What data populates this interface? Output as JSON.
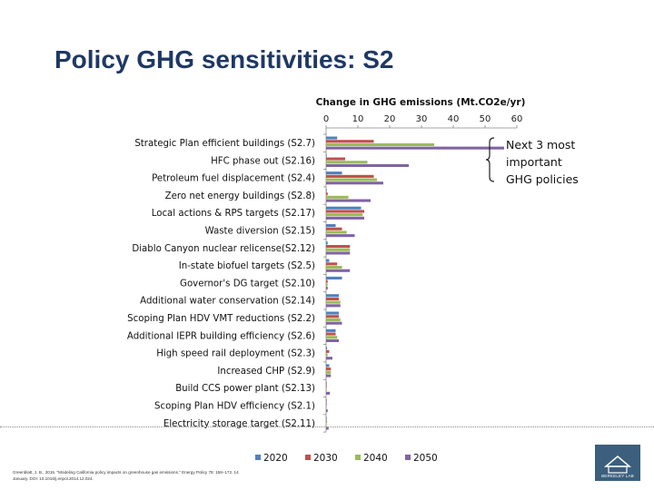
{
  "slide": {
    "title": "Policy GHG sensitivities: S2",
    "note_lines": [
      "Next 3 most",
      "important",
      "GHG policies"
    ],
    "citation_line1": "Greenblatt, J. B., 2015. \"Modeling California policy impacts on greenhouse gas emissions.\" Energy Policy 78: 158–172. 14",
    "citation_line2": "January. DOI: 10.1016/j.enpol.2014.12.024.",
    "logo_text": "BERKELEY LAB"
  },
  "chart_data": {
    "type": "bar",
    "orientation": "horizontal",
    "title": "Change in GHG emissions (Mt.CO2e/yr)",
    "xlim": [
      0,
      60
    ],
    "xticks": [
      "0",
      "10",
      "20",
      "30",
      "40",
      "50",
      "60"
    ],
    "categories": [
      "Strategic Plan efficient buildings (S2.7)",
      "HFC phase out (S2.16)",
      "Petroleum fuel displacement (S2.4)",
      "Zero net energy buildings (S2.8)",
      "Local actions & RPS targets (S2.17)",
      "Waste diversion (S2.15)",
      "Diablo Canyon nuclear relicense(S2.12)",
      "In-state biofuel targets (S2.5)",
      "Governor's DG target (S2.10)",
      "Additional water conservation (S2.14)",
      "Scoping Plan HDV VMT reductions (S2.2)",
      "Additional IEPR building efficiency (S2.6)",
      "High speed rail deployment (S2.3)",
      "Increased CHP (S2.9)",
      "Build CCS power plant (S2.13)",
      "Scoping Plan HDV efficiency (S2.1)",
      "Electricity storage target (S2.11)"
    ],
    "series": [
      {
        "name": "2020",
        "color": "#4f81bd",
        "values": [
          3.5,
          0.2,
          5.0,
          0.2,
          11.0,
          3.0,
          0.5,
          1.0,
          5.0,
          4.0,
          4.0,
          3.0,
          0.3,
          1.0,
          0.2,
          0.2,
          0.2
        ]
      },
      {
        "name": "2030",
        "color": "#c0504d",
        "values": [
          15.0,
          6.0,
          15.0,
          0.5,
          12.0,
          5.0,
          7.5,
          3.5,
          0.5,
          4.0,
          4.0,
          3.0,
          1.0,
          1.5,
          0.2,
          0.2,
          0.2
        ]
      },
      {
        "name": "2040",
        "color": "#9bbb59",
        "values": [
          34.0,
          13.0,
          16.0,
          7.0,
          11.5,
          6.5,
          7.5,
          5.0,
          0.5,
          4.5,
          4.5,
          3.5,
          0.5,
          1.5,
          0.2,
          0.2,
          0.2
        ]
      },
      {
        "name": "2050",
        "color": "#8064a2",
        "values": [
          56.0,
          26.0,
          18.0,
          14.0,
          12.0,
          9.0,
          7.5,
          7.5,
          0.5,
          4.5,
          5.0,
          4.0,
          2.0,
          1.5,
          1.2,
          0.5,
          0.8
        ]
      }
    ],
    "legend_position": "bottom"
  }
}
